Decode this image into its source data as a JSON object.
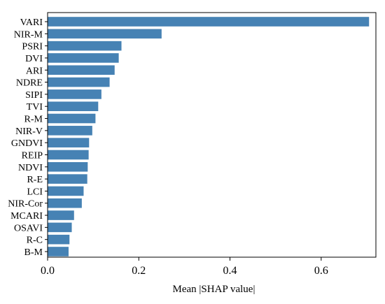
{
  "chart_data": {
    "type": "bar",
    "orientation": "horizontal",
    "categories": [
      "VARI",
      "NIR-M",
      "PSRI",
      "DVI",
      "ARI",
      "NDRE",
      "SIPI",
      "TVI",
      "R-M",
      "NIR-V",
      "GNDVI",
      "REIP",
      "NDVI",
      "R-E",
      "LCI",
      "NIR-Cor",
      "MCARI",
      "OSAVI",
      "R-C",
      "B-M"
    ],
    "values": [
      0.705,
      0.25,
      0.162,
      0.156,
      0.147,
      0.136,
      0.118,
      0.111,
      0.105,
      0.098,
      0.091,
      0.09,
      0.088,
      0.087,
      0.079,
      0.075,
      0.058,
      0.053,
      0.048,
      0.046
    ],
    "title": "",
    "xlabel": "Mean |SHAP value|",
    "ylabel": "",
    "xlim": [
      0.0,
      0.72
    ],
    "xticks": [
      "0.0",
      "0.2",
      "0.4",
      "0.6"
    ],
    "grid": false,
    "bar_color": "#4682b4"
  }
}
